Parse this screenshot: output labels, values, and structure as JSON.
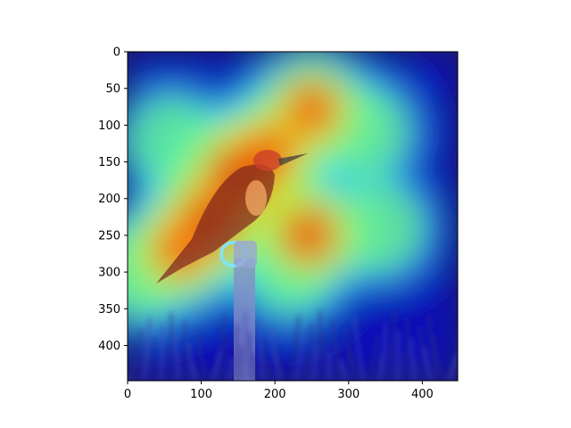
{
  "chart_data": {
    "type": "heatmap",
    "description_free": true,
    "title": "",
    "xlabel": "",
    "ylabel": "",
    "xlim": [
      0,
      448
    ],
    "ylim": [
      448,
      0
    ],
    "x_ticks": [
      0,
      100,
      200,
      300,
      400
    ],
    "y_ticks": [
      0,
      50,
      100,
      150,
      200,
      250,
      300,
      350,
      400
    ],
    "x_tick_labels": [
      "0",
      "100",
      "200",
      "300",
      "400"
    ],
    "y_tick_labels": [
      "0",
      "50",
      "100",
      "150",
      "200",
      "250",
      "300",
      "350",
      "400"
    ],
    "colormap": "jet",
    "overlay_alpha": 0.55,
    "background_color": "#1a1a5a",
    "hotspots": [
      {
        "x": 150,
        "y": 170,
        "intensity": 1.0
      },
      {
        "x": 110,
        "y": 230,
        "intensity": 0.95
      },
      {
        "x": 250,
        "y": 80,
        "intensity": 0.8
      },
      {
        "x": 245,
        "y": 250,
        "intensity": 0.85
      },
      {
        "x": 70,
        "y": 270,
        "intensity": 0.8
      },
      {
        "x": 190,
        "y": 140,
        "intensity": 0.85
      },
      {
        "x": 320,
        "y": 110,
        "intensity": 0.55
      },
      {
        "x": 60,
        "y": 120,
        "intensity": 0.5
      },
      {
        "x": 340,
        "y": 240,
        "intensity": 0.55
      },
      {
        "x": 220,
        "y": 300,
        "intensity": 0.5
      },
      {
        "x": 20,
        "y": 300,
        "intensity": 0.6
      }
    ]
  }
}
